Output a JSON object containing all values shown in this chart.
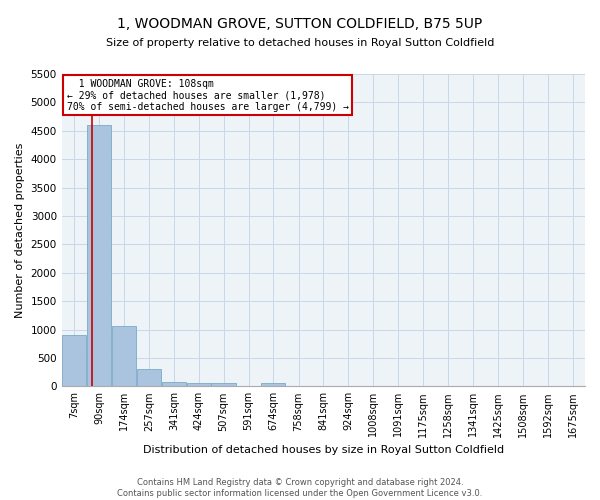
{
  "title": "1, WOODMAN GROVE, SUTTON COLDFIELD, B75 5UP",
  "subtitle": "Size of property relative to detached houses in Royal Sutton Coldfield",
  "xlabel": "Distribution of detached houses by size in Royal Sutton Coldfield",
  "ylabel": "Number of detached properties",
  "footnote": "Contains HM Land Registry data © Crown copyright and database right 2024.\nContains public sector information licensed under the Open Government Licence v3.0.",
  "bar_labels": [
    "7sqm",
    "90sqm",
    "174sqm",
    "257sqm",
    "341sqm",
    "424sqm",
    "507sqm",
    "591sqm",
    "674sqm",
    "758sqm",
    "841sqm",
    "924sqm",
    "1008sqm",
    "1091sqm",
    "1175sqm",
    "1258sqm",
    "1341sqm",
    "1425sqm",
    "1508sqm",
    "1592sqm",
    "1675sqm"
  ],
  "bar_values": [
    900,
    4600,
    1060,
    300,
    80,
    60,
    55,
    0,
    55,
    0,
    0,
    0,
    0,
    0,
    0,
    0,
    0,
    0,
    0,
    0,
    0
  ],
  "bar_color": "#aac4e0",
  "bar_edge_color": "#7aaac8",
  "grid_color": "#c8d8e8",
  "background_color": "#eef3f8",
  "ylim": [
    0,
    5500
  ],
  "yticks": [
    0,
    500,
    1000,
    1500,
    2000,
    2500,
    3000,
    3500,
    4000,
    4500,
    5000,
    5500
  ],
  "property_size": 108,
  "property_label": "1 WOODMAN GROVE: 108sqm",
  "pct_smaller": "29% of detached houses are smaller (1,978)",
  "pct_larger": "70% of semi-detached houses are larger (4,799)",
  "red_line_color": "#cc0000",
  "annotation_box_color": "#cc0000",
  "bin_width": 83
}
